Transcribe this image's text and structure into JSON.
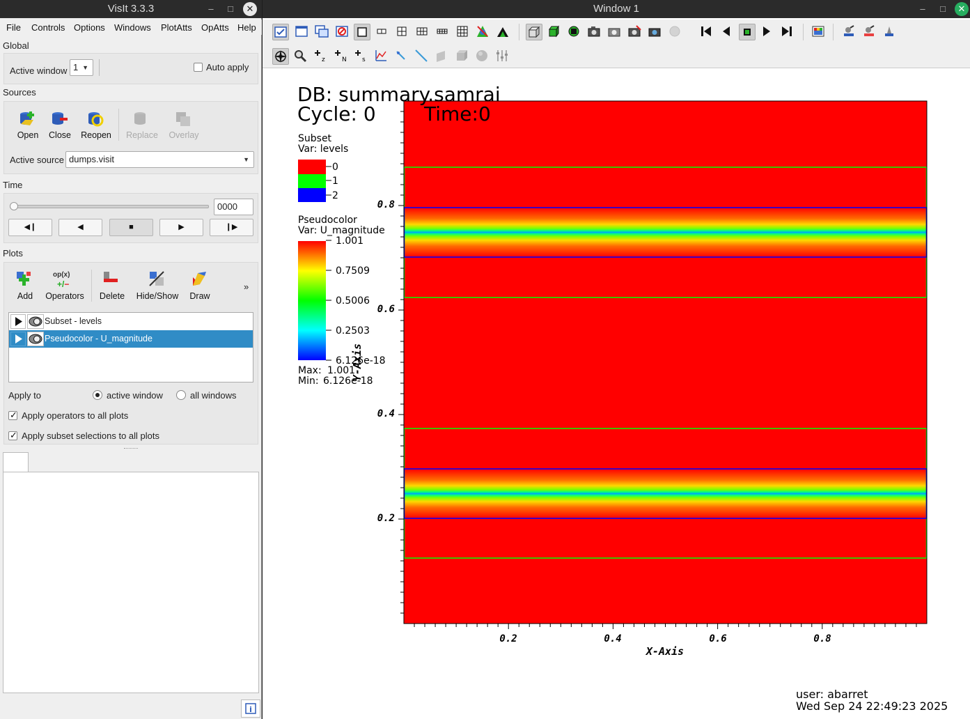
{
  "left_window": {
    "title": "VisIt 3.3.3",
    "menu": [
      "File",
      "Controls",
      "Options",
      "Windows",
      "PlotAtts",
      "OpAtts",
      "Help"
    ],
    "global": {
      "section_label": "Global",
      "active_window_label": "Active window",
      "active_window_value": "1",
      "auto_apply_label": "Auto apply",
      "auto_apply_checked": false
    },
    "sources": {
      "section_label": "Sources",
      "buttons": [
        "Open",
        "Close",
        "Reopen",
        "Replace",
        "Overlay"
      ],
      "active_source_label": "Active source",
      "active_source_value": "dumps.visit"
    },
    "time": {
      "section_label": "Time",
      "slider_position": 0,
      "frame_value": "0000",
      "buttons": [
        "step-back",
        "play-reverse",
        "stop",
        "play",
        "step-forward"
      ]
    },
    "plots": {
      "section_label": "Plots",
      "buttons": [
        "Add",
        "Operators",
        "Delete",
        "Hide/Show",
        "Draw"
      ],
      "operators_icon_text": "op(x)",
      "more": "»",
      "list": [
        {
          "label": "Subset - levels",
          "selected": false
        },
        {
          "label": "Pseudocolor - U_magnitude",
          "selected": true
        }
      ],
      "apply_to_label": "Apply to",
      "apply_to_active": "active window",
      "apply_to_all": "all windows",
      "apply_operators_label": "Apply operators to all plots",
      "apply_subset_label": "Apply subset selections to all plots"
    }
  },
  "vis_window": {
    "title": "Window 1",
    "db_label": "DB: summary.samrai",
    "cycle_label": "Cycle: 0",
    "time_label": "Time:0",
    "subset_legend": {
      "title": "Subset",
      "var": "Var: levels",
      "entries": [
        {
          "label": "0",
          "color": "#ff0000"
        },
        {
          "label": "1",
          "color": "#00ff00"
        },
        {
          "label": "2",
          "color": "#0000ff"
        }
      ]
    },
    "pseudocolor_legend": {
      "title": "Pseudocolor",
      "var": "Var: U_magnitude",
      "ticks": [
        "1.001",
        "0.7509",
        "0.5006",
        "0.2503",
        "6.126e-18"
      ],
      "max_label": "Max:",
      "max_value": "1.001",
      "min_label": "Min:",
      "min_value": "6.126e-18"
    },
    "axes": {
      "x_title": "X-Axis",
      "y_title": "Y-Axis",
      "x_ticks": [
        "0.2",
        "0.4",
        "0.6",
        "0.8"
      ],
      "y_ticks": [
        "0.8",
        "0.6",
        "0.4",
        "0.2"
      ]
    },
    "user_label": "user: abarret",
    "timestamp": "Wed Sep 24 22:49:23 2025"
  }
}
